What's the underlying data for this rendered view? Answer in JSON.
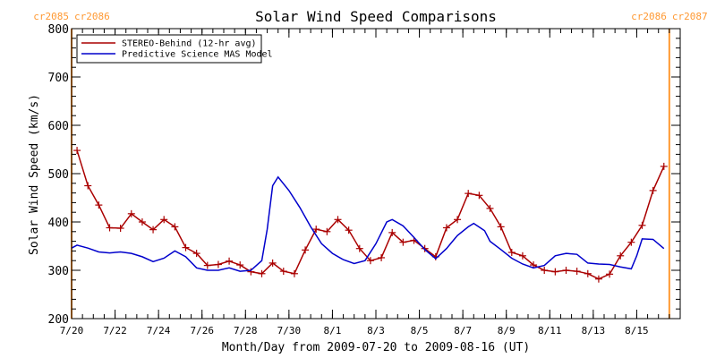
{
  "chart_data": {
    "type": "line",
    "title": "Solar Wind Speed Comparisons",
    "xlabel": "Month/Day from 2009-07-20 to 2009-08-16 (UT)",
    "ylabel": "Solar Wind Speed (km/s)",
    "xlim": [
      "2009-07-20",
      "2009-08-17"
    ],
    "ylim": [
      200,
      800
    ],
    "y_ticks": [
      "200",
      "300",
      "400",
      "500",
      "600",
      "700",
      "800"
    ],
    "x_ticks": [
      {
        "date": "2009-07-20",
        "label": "7/20"
      },
      {
        "date": "2009-07-22",
        "label": "7/22"
      },
      {
        "date": "2009-07-24",
        "label": "7/24"
      },
      {
        "date": "2009-07-26",
        "label": "7/26"
      },
      {
        "date": "2009-07-28",
        "label": "7/28"
      },
      {
        "date": "2009-07-30",
        "label": "7/30"
      },
      {
        "date": "2009-08-01",
        "label": "8/1"
      },
      {
        "date": "2009-08-03",
        "label": "8/3"
      },
      {
        "date": "2009-08-05",
        "label": "8/5"
      },
      {
        "date": "2009-08-07",
        "label": "8/7"
      },
      {
        "date": "2009-08-09",
        "label": "8/9"
      },
      {
        "date": "2009-08-11",
        "label": "8/11"
      },
      {
        "date": "2009-08-13",
        "label": "8/13"
      },
      {
        "date": "2009-08-15",
        "label": "8/15"
      }
    ],
    "grid": false,
    "legend_position": "top-left",
    "rotation_markers": [
      {
        "date": "2009-07-20",
        "labels": [
          "cr2085",
          "cr2086"
        ],
        "color": "#ff9933"
      },
      {
        "date": "2009-08-16 12:00",
        "labels": [
          "cr2086",
          "cr2087"
        ],
        "color": "#ff9933"
      }
    ],
    "series": [
      {
        "name": "STEREO-Behind (12-hr avg)",
        "color": "#aa0000",
        "marker": "plus",
        "points": [
          [
            "2009-07-20 06:00",
            548
          ],
          [
            "2009-07-20 18:00",
            475
          ],
          [
            "2009-07-21 06:00",
            435
          ],
          [
            "2009-07-21 18:00",
            388
          ],
          [
            "2009-07-22 06:00",
            387
          ],
          [
            "2009-07-22 18:00",
            417
          ],
          [
            "2009-07-23 06:00",
            400
          ],
          [
            "2009-07-23 18:00",
            384
          ],
          [
            "2009-07-24 06:00",
            405
          ],
          [
            "2009-07-24 18:00",
            390
          ],
          [
            "2009-07-25 06:00",
            347
          ],
          [
            "2009-07-25 18:00",
            335
          ],
          [
            "2009-07-26 06:00",
            310
          ],
          [
            "2009-07-26 18:00",
            312
          ],
          [
            "2009-07-27 06:00",
            319
          ],
          [
            "2009-07-27 18:00",
            311
          ],
          [
            "2009-07-28 06:00",
            297
          ],
          [
            "2009-07-28 18:00",
            293
          ],
          [
            "2009-07-29 06:00",
            315
          ],
          [
            "2009-07-29 18:00",
            298
          ],
          [
            "2009-07-30 06:00",
            293
          ],
          [
            "2009-07-30 18:00",
            342
          ],
          [
            "2009-07-31 06:00",
            385
          ],
          [
            "2009-07-31 18:00",
            380
          ],
          [
            "2009-08-01 06:00",
            405
          ],
          [
            "2009-08-01 18:00",
            383
          ],
          [
            "2009-08-02 06:00",
            345
          ],
          [
            "2009-08-02 18:00",
            320
          ],
          [
            "2009-08-03 06:00",
            326
          ],
          [
            "2009-08-03 18:00",
            378
          ],
          [
            "2009-08-04 06:00",
            358
          ],
          [
            "2009-08-04 18:00",
            362
          ],
          [
            "2009-08-05 06:00",
            345
          ],
          [
            "2009-08-05 18:00",
            328
          ],
          [
            "2009-08-06 06:00",
            388
          ],
          [
            "2009-08-06 18:00",
            405
          ],
          [
            "2009-08-07 06:00",
            459
          ],
          [
            "2009-08-07 18:00",
            455
          ],
          [
            "2009-08-08 06:00",
            428
          ],
          [
            "2009-08-08 18:00",
            390
          ],
          [
            "2009-08-09 06:00",
            337
          ],
          [
            "2009-08-09 18:00",
            330
          ],
          [
            "2009-08-10 06:00",
            311
          ],
          [
            "2009-08-10 18:00",
            300
          ],
          [
            "2009-08-11 06:00",
            297
          ],
          [
            "2009-08-11 18:00",
            300
          ],
          [
            "2009-08-12 06:00",
            298
          ],
          [
            "2009-08-12 18:00",
            293
          ],
          [
            "2009-08-13 06:00",
            282
          ],
          [
            "2009-08-13 18:00",
            292
          ],
          [
            "2009-08-14 06:00",
            330
          ],
          [
            "2009-08-14 18:00",
            358
          ],
          [
            "2009-08-15 06:00",
            393
          ],
          [
            "2009-08-15 18:00",
            465
          ],
          [
            "2009-08-16 06:00",
            515
          ]
        ]
      },
      {
        "name": "Predictive Science MAS Model",
        "color": "#0000cc",
        "marker": "none",
        "points": [
          [
            "2009-07-20 00:00",
            346
          ],
          [
            "2009-07-20 06:00",
            352
          ],
          [
            "2009-07-20 18:00",
            346
          ],
          [
            "2009-07-21 06:00",
            338
          ],
          [
            "2009-07-21 18:00",
            336
          ],
          [
            "2009-07-22 06:00",
            338
          ],
          [
            "2009-07-22 18:00",
            335
          ],
          [
            "2009-07-23 06:00",
            328
          ],
          [
            "2009-07-23 18:00",
            318
          ],
          [
            "2009-07-24 06:00",
            325
          ],
          [
            "2009-07-24 18:00",
            340
          ],
          [
            "2009-07-25 06:00",
            328
          ],
          [
            "2009-07-25 18:00",
            305
          ],
          [
            "2009-07-26 06:00",
            300
          ],
          [
            "2009-07-26 18:00",
            300
          ],
          [
            "2009-07-27 06:00",
            305
          ],
          [
            "2009-07-27 18:00",
            298
          ],
          [
            "2009-07-28 06:00",
            300
          ],
          [
            "2009-07-28 18:00",
            320
          ],
          [
            "2009-07-29 00:00",
            385
          ],
          [
            "2009-07-29 06:00",
            475
          ],
          [
            "2009-07-29 12:00",
            493
          ],
          [
            "2009-07-30 00:00",
            465
          ],
          [
            "2009-07-30 12:00",
            430
          ],
          [
            "2009-07-31 00:00",
            390
          ],
          [
            "2009-07-31 12:00",
            355
          ],
          [
            "2009-08-01 00:00",
            335
          ],
          [
            "2009-08-01 12:00",
            322
          ],
          [
            "2009-08-02 00:00",
            314
          ],
          [
            "2009-08-02 12:00",
            320
          ],
          [
            "2009-08-03 00:00",
            355
          ],
          [
            "2009-08-03 12:00",
            400
          ],
          [
            "2009-08-03 18:00",
            405
          ],
          [
            "2009-08-04 06:00",
            392
          ],
          [
            "2009-08-04 18:00",
            368
          ],
          [
            "2009-08-05 06:00",
            343
          ],
          [
            "2009-08-05 18:00",
            324
          ],
          [
            "2009-08-06 06:00",
            345
          ],
          [
            "2009-08-06 18:00",
            372
          ],
          [
            "2009-08-07 06:00",
            390
          ],
          [
            "2009-08-07 12:00",
            397
          ],
          [
            "2009-08-08 00:00",
            382
          ],
          [
            "2009-08-08 06:00",
            360
          ],
          [
            "2009-08-08 18:00",
            343
          ],
          [
            "2009-08-09 06:00",
            325
          ],
          [
            "2009-08-09 18:00",
            313
          ],
          [
            "2009-08-10 06:00",
            305
          ],
          [
            "2009-08-10 18:00",
            310
          ],
          [
            "2009-08-11 06:00",
            330
          ],
          [
            "2009-08-11 18:00",
            335
          ],
          [
            "2009-08-12 06:00",
            333
          ],
          [
            "2009-08-12 18:00",
            315
          ],
          [
            "2009-08-13 06:00",
            313
          ],
          [
            "2009-08-13 18:00",
            312
          ],
          [
            "2009-08-14 06:00",
            307
          ],
          [
            "2009-08-14 18:00",
            303
          ],
          [
            "2009-08-15 00:00",
            330
          ],
          [
            "2009-08-15 06:00",
            365
          ],
          [
            "2009-08-15 18:00",
            364
          ],
          [
            "2009-08-16 06:00",
            345
          ]
        ]
      }
    ]
  }
}
